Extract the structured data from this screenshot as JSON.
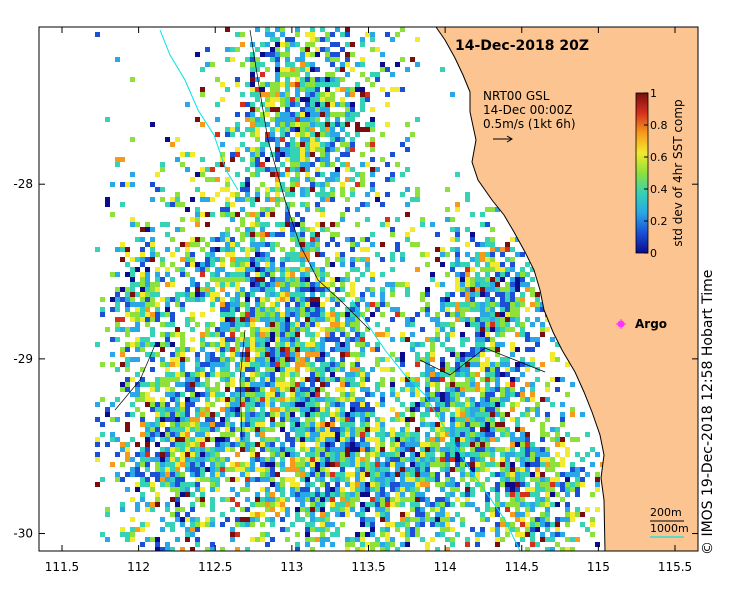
{
  "map": {
    "title": "14-Dec-2018 20Z",
    "land_color": "#fbc490",
    "x_ticks": [
      "111.5",
      "112",
      "112.5",
      "113",
      "113.5",
      "114",
      "114.5",
      "115",
      "115.5"
    ],
    "y_ticks": [
      "-28",
      "-29",
      "-30"
    ],
    "x_range": [
      111.35,
      115.65
    ],
    "y_range": [
      -30.1,
      -27.1
    ],
    "current_legend": {
      "line1": "NRT00 GSL",
      "line2": "14-Dec 00:00Z",
      "line3": "0.5m/s (1kt 6h)"
    },
    "colorbar": {
      "label": "std dev of 4hr SST comp",
      "ticks": [
        "0",
        "0.2",
        "0.4",
        "0.6",
        "0.8",
        "1"
      ],
      "colors": [
        "#0b0b8c",
        "#1a4fd6",
        "#29a7e6",
        "#35d2b5",
        "#8ee13a",
        "#f3ea2d",
        "#f79a1c",
        "#d5301d",
        "#7a0e0e"
      ]
    },
    "argo": {
      "label": "Argo",
      "lon": 115.12,
      "lat": -28.83,
      "color": "#ff33ff"
    },
    "depth_contours": {
      "label_200": "200m",
      "label_1000": "1000m",
      "color_200": "#000000",
      "color_1000": "#00e5e5"
    },
    "credit": "© IMOS 19-Dec-2018 12:58 Hobart Time"
  }
}
